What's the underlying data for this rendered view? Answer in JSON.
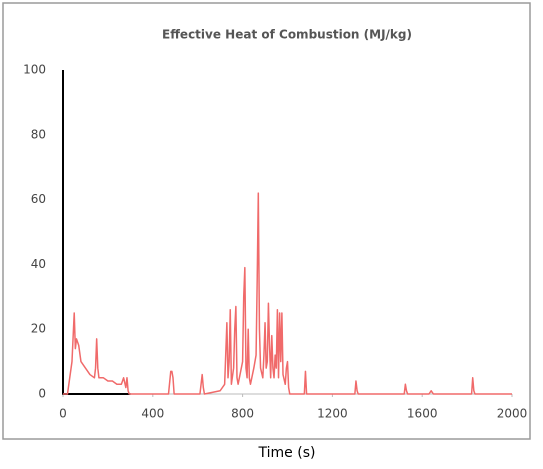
{
  "chart_data": {
    "type": "line",
    "title": "Effective Heat of Combustion (MJ/kg)",
    "x_label": "Time (s)",
    "xlim": [
      0,
      2000
    ],
    "xticks": [
      0,
      400,
      800,
      1200,
      1600,
      2000
    ],
    "ylim": [
      0,
      100
    ],
    "yticks": [
      0,
      20,
      40,
      60,
      80,
      100
    ],
    "grid": false,
    "series": [
      {
        "color": "#000000",
        "x": [
          0,
          0,
          300
        ],
        "values": [
          100,
          0,
          0
        ]
      },
      {
        "color": "#f06a6a",
        "x": [
          0,
          20,
          40,
          50,
          55,
          60,
          70,
          80,
          100,
          120,
          140,
          145,
          150,
          155,
          160,
          180,
          200,
          220,
          240,
          260,
          270,
          280,
          285,
          290,
          295,
          300,
          470,
          480,
          485,
          490,
          495,
          500,
          610,
          615,
          620,
          625,
          630,
          700,
          720,
          730,
          735,
          740,
          745,
          750,
          760,
          765,
          770,
          775,
          780,
          800,
          805,
          810,
          815,
          820,
          825,
          830,
          835,
          850,
          860,
          865,
          870,
          875,
          880,
          890,
          895,
          900,
          905,
          910,
          915,
          920,
          925,
          930,
          935,
          940,
          945,
          950,
          955,
          960,
          965,
          970,
          975,
          980,
          990,
          995,
          1000,
          1005,
          1010,
          1075,
          1080,
          1085,
          1300,
          1305,
          1310,
          1315,
          1520,
          1525,
          1530,
          1535,
          1630,
          1640,
          1650,
          1820,
          1825,
          1830,
          1835,
          2000
        ],
        "values": [
          0,
          0,
          10,
          25,
          14,
          17,
          15,
          10,
          8,
          6,
          5,
          8,
          17,
          8,
          5,
          5,
          4,
          4,
          3,
          3,
          5,
          2,
          5,
          1,
          0,
          0,
          0,
          7,
          7,
          5,
          0,
          0,
          0,
          3,
          6,
          2,
          0,
          1,
          3,
          22,
          5,
          10,
          26,
          3,
          8,
          20,
          27,
          5,
          3,
          10,
          30,
          39,
          8,
          5,
          20,
          5,
          3,
          8,
          12,
          35,
          62,
          20,
          8,
          5,
          12,
          22,
          8,
          10,
          28,
          15,
          5,
          18,
          8,
          5,
          12,
          8,
          26,
          5,
          25,
          10,
          25,
          6,
          3,
          8,
          10,
          2,
          0,
          0,
          7,
          0,
          0,
          4,
          1,
          0,
          0,
          3,
          1,
          0,
          0,
          1,
          0,
          0,
          5,
          1,
          0,
          0
        ]
      }
    ]
  }
}
